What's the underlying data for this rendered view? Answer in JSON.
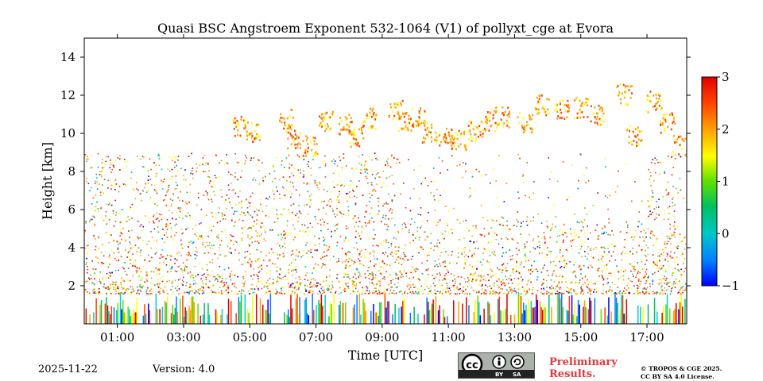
{
  "chart_data": {
    "type": "heatmap",
    "title": "Quasi BSC Angstroem Exponent 532-1064 (V1) of pollyxt_cge at Evora",
    "xlabel": "Time [UTC]",
    "ylabel": "Height [km]",
    "xlim": [
      0,
      18.2
    ],
    "ylim": [
      0,
      15
    ],
    "x_ticks": [
      1,
      3,
      5,
      7,
      9,
      11,
      13,
      15,
      17
    ],
    "x_tick_labels": [
      "01:00",
      "03:00",
      "05:00",
      "07:00",
      "09:00",
      "11:00",
      "13:00",
      "15:00",
      "17:00"
    ],
    "y_ticks": [
      2,
      4,
      6,
      8,
      10,
      12,
      14
    ],
    "y_tick_labels": [
      "2",
      "4",
      "6",
      "8",
      "10",
      "12",
      "14"
    ],
    "colorbar": {
      "min": -1,
      "max": 3,
      "ticks": [
        3,
        2,
        1,
        0,
        -1
      ],
      "tick_labels": [
        "3",
        "2",
        "1",
        "0",
        "−1"
      ],
      "colormap": [
        "#0000ff",
        "#0080ff",
        "#00d0d0",
        "#00c060",
        "#60e000",
        "#ffff00",
        "#ffa000",
        "#ff4000",
        "#e00000"
      ]
    },
    "features": [
      {
        "name": "near-surface layer",
        "height_range": [
          0,
          1.6
        ],
        "value_range": [
          -1,
          3
        ]
      },
      {
        "name": "aerosol layer",
        "height_range": [
          1.6,
          9
        ],
        "value_range": [
          -1,
          3
        ]
      },
      {
        "name": "cirrus cloud layer",
        "time_range": [
          4.5,
          18.2
        ],
        "height_range": [
          9,
          12.3
        ],
        "value_range": [
          1.5,
          2.5
        ]
      }
    ]
  },
  "footer": {
    "date": "2025-11-22",
    "version": "Version: 4.0",
    "license_icon": "cc-by-sa-icon",
    "cc_text": "cc",
    "by_text": "BY",
    "sa_text": "SA",
    "prelim_line1": "Preliminary",
    "prelim_line2": "Results.",
    "copyright_line1": "© TROPOS & CGE 2025.",
    "copyright_line2": "CC BY SA 4.0 License."
  }
}
